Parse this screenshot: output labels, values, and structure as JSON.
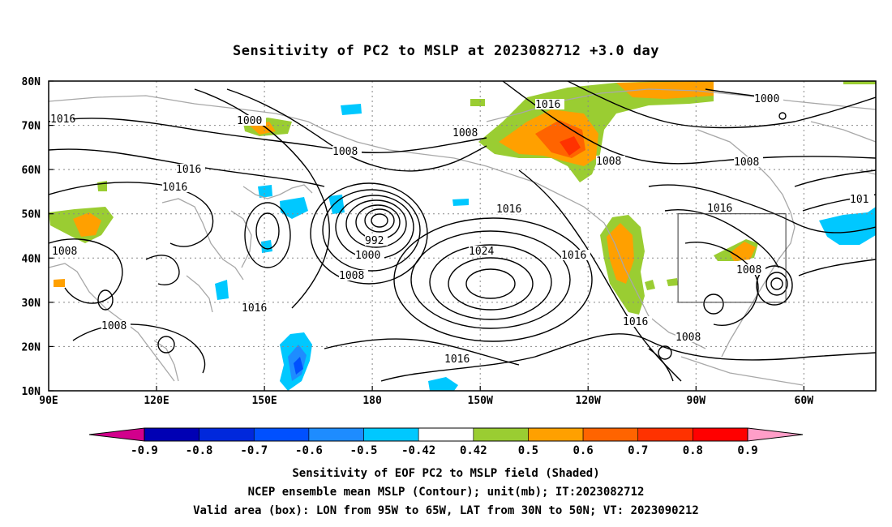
{
  "title": "Sensitivity of PC2 to MSLP at 2023082712 +3.0 day",
  "map": {
    "lat_labels": [
      "80N",
      "70N",
      "60N",
      "50N",
      "40N",
      "30N",
      "20N",
      "10N"
    ],
    "lon_labels": [
      "90E",
      "120E",
      "150E",
      "180",
      "150W",
      "120W",
      "90W",
      "60W"
    ],
    "contour_labels": [
      "1016",
      "1000",
      "1008",
      "1016",
      "1016",
      "1008",
      "1016",
      "1008",
      "992",
      "1000",
      "1008",
      "1024",
      "1016",
      "1016",
      "1016",
      "1008",
      "1016",
      "1008",
      "1000",
      "1008",
      "1016",
      "1008",
      "1008",
      "101",
      "1016"
    ],
    "box": {
      "lon_from": "95W",
      "lon_to": "65W",
      "lat_from": "30N",
      "lat_to": "50N"
    }
  },
  "colorbar": {
    "labels": [
      "-0.9",
      "-0.8",
      "-0.7",
      "-0.6",
      "-0.5",
      "-0.42",
      "0.42",
      "0.5",
      "0.6",
      "0.7",
      "0.8",
      "0.9"
    ],
    "colors": [
      "#0000b4",
      "#0028dc",
      "#0050ff",
      "#1e8cff",
      "#00c8ff",
      "#ffffff",
      "#9acd32",
      "#ffa000",
      "#ff6400",
      "#ff3200",
      "#ff0000"
    ],
    "low_end_color": "#d2008c",
    "high_end_color": "#ff9ec8"
  },
  "captions": [
    "Sensitivity of EOF PC2 to MSLP field (Shaded)",
    "NCEP ensemble mean MSLP (Contour); unit(mb); IT:2023082712",
    "Valid area (box): LON from 95W to 65W, LAT from 30N to 50N; VT: 2023090212"
  ],
  "colors": {
    "coastline": "#a8a8a8",
    "contour": "#000000",
    "grid": "#888888"
  }
}
